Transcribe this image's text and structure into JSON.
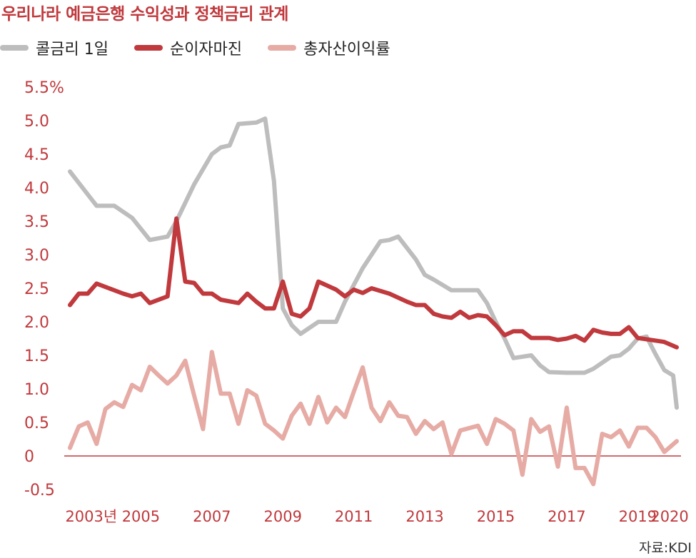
{
  "title": "우리나라 예금은행 수익성과 정책금리 관계",
  "source": "자료:KDI",
  "colors": {
    "accent": "#c0393d",
    "axis": "#c0393d",
    "tick_text": "#c0393d",
    "xtick_text": "#c0393d"
  },
  "chart_data": {
    "type": "line",
    "title": "우리나라 예금은행 수익성과 정책금리 관계",
    "xlabel": "",
    "ylabel": "",
    "ylim": [
      -0.5,
      5.5
    ],
    "xlim": [
      2003.0,
      2020.1
    ],
    "y_ticks": [
      {
        "value": 5.5,
        "label": "5.5%"
      },
      {
        "value": 5.0,
        "label": "5.0"
      },
      {
        "value": 4.5,
        "label": "4.5"
      },
      {
        "value": 4.0,
        "label": "4.0"
      },
      {
        "value": 3.5,
        "label": "3.5"
      },
      {
        "value": 3.0,
        "label": "3.0"
      },
      {
        "value": 2.5,
        "label": "2.5"
      },
      {
        "value": 2.0,
        "label": "2.0"
      },
      {
        "value": 1.5,
        "label": "1.5"
      },
      {
        "value": 1.0,
        "label": "1.0"
      },
      {
        "value": 0.5,
        "label": "0.5"
      },
      {
        "value": 0,
        "label": "0"
      },
      {
        "value": -0.5,
        "label": "-0.5"
      }
    ],
    "x_ticks": [
      {
        "value": 2003.6,
        "label": "2003년"
      },
      {
        "value": 2005.0,
        "label": "2005"
      },
      {
        "value": 2007.0,
        "label": "2007"
      },
      {
        "value": 2009.0,
        "label": "2009"
      },
      {
        "value": 2011.0,
        "label": "2011"
      },
      {
        "value": 2013.0,
        "label": "2013"
      },
      {
        "value": 2015.0,
        "label": "2015"
      },
      {
        "value": 2017.0,
        "label": "2017"
      },
      {
        "value": 2019.0,
        "label": "2019"
      },
      {
        "value": 2019.9,
        "label": "2020"
      }
    ],
    "legend_position": "top",
    "series": [
      {
        "name": "콜금리 1일",
        "color": "#bdbdbd",
        "points": [
          [
            2003.0,
            4.24
          ],
          [
            2003.75,
            3.73
          ],
          [
            2004.25,
            3.73
          ],
          [
            2004.75,
            3.55
          ],
          [
            2005.25,
            3.22
          ],
          [
            2005.75,
            3.27
          ],
          [
            2006.0,
            3.5
          ],
          [
            2006.5,
            4.05
          ],
          [
            2007.0,
            4.5
          ],
          [
            2007.25,
            4.6
          ],
          [
            2007.5,
            4.63
          ],
          [
            2007.75,
            4.95
          ],
          [
            2008.25,
            4.97
          ],
          [
            2008.5,
            5.03
          ],
          [
            2008.75,
            4.1
          ],
          [
            2009.0,
            2.2
          ],
          [
            2009.25,
            1.95
          ],
          [
            2009.5,
            1.82
          ],
          [
            2010.0,
            2.0
          ],
          [
            2010.5,
            2.0
          ],
          [
            2010.75,
            2.3
          ],
          [
            2011.25,
            2.8
          ],
          [
            2011.75,
            3.2
          ],
          [
            2012.0,
            3.22
          ],
          [
            2012.25,
            3.27
          ],
          [
            2012.75,
            2.93
          ],
          [
            2013.0,
            2.7
          ],
          [
            2013.25,
            2.63
          ],
          [
            2013.75,
            2.47
          ],
          [
            2014.5,
            2.47
          ],
          [
            2014.75,
            2.28
          ],
          [
            2015.0,
            2.0
          ],
          [
            2015.25,
            1.75
          ],
          [
            2015.5,
            1.46
          ],
          [
            2016.0,
            1.5
          ],
          [
            2016.25,
            1.35
          ],
          [
            2016.5,
            1.25
          ],
          [
            2017.0,
            1.24
          ],
          [
            2017.5,
            1.24
          ],
          [
            2017.75,
            1.3
          ],
          [
            2018.25,
            1.48
          ],
          [
            2018.5,
            1.5
          ],
          [
            2018.75,
            1.6
          ],
          [
            2019.0,
            1.75
          ],
          [
            2019.25,
            1.78
          ],
          [
            2019.5,
            1.52
          ],
          [
            2019.75,
            1.28
          ],
          [
            2020.0,
            1.2
          ],
          [
            2020.25,
            0.72
          ]
        ]
      },
      {
        "name": "순이자마진",
        "color": "#c0393d",
        "points": [
          [
            2003.0,
            2.25
          ],
          [
            2003.25,
            2.42
          ],
          [
            2003.5,
            2.42
          ],
          [
            2003.75,
            2.57
          ],
          [
            2004.5,
            2.42
          ],
          [
            2004.75,
            2.38
          ],
          [
            2005.0,
            2.42
          ],
          [
            2005.25,
            2.28
          ],
          [
            2005.75,
            2.38
          ],
          [
            2006.0,
            3.54
          ],
          [
            2006.25,
            2.6
          ],
          [
            2006.5,
            2.58
          ],
          [
            2006.75,
            2.42
          ],
          [
            2007.0,
            2.42
          ],
          [
            2007.25,
            2.33
          ],
          [
            2007.75,
            2.28
          ],
          [
            2008.0,
            2.42
          ],
          [
            2008.25,
            2.3
          ],
          [
            2008.5,
            2.2
          ],
          [
            2008.75,
            2.2
          ],
          [
            2009.0,
            2.6
          ],
          [
            2009.25,
            2.12
          ],
          [
            2009.5,
            2.08
          ],
          [
            2009.75,
            2.2
          ],
          [
            2010.0,
            2.6
          ],
          [
            2010.5,
            2.48
          ],
          [
            2010.75,
            2.38
          ],
          [
            2011.0,
            2.48
          ],
          [
            2011.25,
            2.43
          ],
          [
            2011.5,
            2.5
          ],
          [
            2012.0,
            2.42
          ],
          [
            2012.5,
            2.3
          ],
          [
            2012.75,
            2.25
          ],
          [
            2013.0,
            2.25
          ],
          [
            2013.25,
            2.12
          ],
          [
            2013.5,
            2.08
          ],
          [
            2013.75,
            2.06
          ],
          [
            2014.0,
            2.15
          ],
          [
            2014.25,
            2.06
          ],
          [
            2014.5,
            2.1
          ],
          [
            2014.75,
            2.08
          ],
          [
            2015.0,
            1.95
          ],
          [
            2015.25,
            1.8
          ],
          [
            2015.5,
            1.86
          ],
          [
            2015.75,
            1.86
          ],
          [
            2016.0,
            1.76
          ],
          [
            2016.5,
            1.76
          ],
          [
            2016.75,
            1.73
          ],
          [
            2017.0,
            1.75
          ],
          [
            2017.25,
            1.79
          ],
          [
            2017.5,
            1.72
          ],
          [
            2017.75,
            1.88
          ],
          [
            2018.0,
            1.84
          ],
          [
            2018.25,
            1.82
          ],
          [
            2018.5,
            1.82
          ],
          [
            2018.75,
            1.92
          ],
          [
            2019.0,
            1.76
          ],
          [
            2019.5,
            1.72
          ],
          [
            2019.75,
            1.7
          ],
          [
            2020.25,
            1.62
          ]
        ]
      },
      {
        "name": "총자산이익률",
        "color": "#e6aba4",
        "points": [
          [
            2003.0,
            0.12
          ],
          [
            2003.25,
            0.44
          ],
          [
            2003.5,
            0.5
          ],
          [
            2003.75,
            0.18
          ],
          [
            2004.0,
            0.7
          ],
          [
            2004.25,
            0.8
          ],
          [
            2004.5,
            0.73
          ],
          [
            2004.75,
            1.06
          ],
          [
            2005.0,
            0.98
          ],
          [
            2005.25,
            1.33
          ],
          [
            2005.5,
            1.2
          ],
          [
            2005.75,
            1.08
          ],
          [
            2006.0,
            1.2
          ],
          [
            2006.25,
            1.42
          ],
          [
            2006.5,
            0.9
          ],
          [
            2006.75,
            0.4
          ],
          [
            2007.0,
            1.55
          ],
          [
            2007.25,
            0.93
          ],
          [
            2007.5,
            0.93
          ],
          [
            2007.75,
            0.48
          ],
          [
            2008.0,
            0.98
          ],
          [
            2008.25,
            0.9
          ],
          [
            2008.5,
            0.48
          ],
          [
            2008.75,
            0.38
          ],
          [
            2009.0,
            0.26
          ],
          [
            2009.25,
            0.6
          ],
          [
            2009.5,
            0.78
          ],
          [
            2009.75,
            0.48
          ],
          [
            2010.0,
            0.88
          ],
          [
            2010.25,
            0.5
          ],
          [
            2010.5,
            0.72
          ],
          [
            2010.75,
            0.58
          ],
          [
            2011.0,
            0.96
          ],
          [
            2011.25,
            1.32
          ],
          [
            2011.5,
            0.72
          ],
          [
            2011.75,
            0.52
          ],
          [
            2012.0,
            0.8
          ],
          [
            2012.25,
            0.6
          ],
          [
            2012.5,
            0.58
          ],
          [
            2012.75,
            0.33
          ],
          [
            2013.0,
            0.52
          ],
          [
            2013.25,
            0.4
          ],
          [
            2013.5,
            0.5
          ],
          [
            2013.75,
            0.03
          ],
          [
            2014.0,
            0.38
          ],
          [
            2014.5,
            0.45
          ],
          [
            2014.75,
            0.18
          ],
          [
            2015.0,
            0.55
          ],
          [
            2015.25,
            0.48
          ],
          [
            2015.5,
            0.38
          ],
          [
            2015.75,
            -0.28
          ],
          [
            2016.0,
            0.55
          ],
          [
            2016.25,
            0.36
          ],
          [
            2016.5,
            0.44
          ],
          [
            2016.75,
            -0.16
          ],
          [
            2017.0,
            0.72
          ],
          [
            2017.25,
            -0.18
          ],
          [
            2017.5,
            -0.18
          ],
          [
            2017.75,
            -0.42
          ],
          [
            2018.0,
            0.33
          ],
          [
            2018.25,
            0.28
          ],
          [
            2018.5,
            0.38
          ],
          [
            2018.75,
            0.14
          ],
          [
            2019.0,
            0.42
          ],
          [
            2019.25,
            0.42
          ],
          [
            2019.5,
            0.28
          ],
          [
            2019.75,
            0.06
          ],
          [
            2020.25,
            0.22
          ]
        ]
      }
    ]
  }
}
